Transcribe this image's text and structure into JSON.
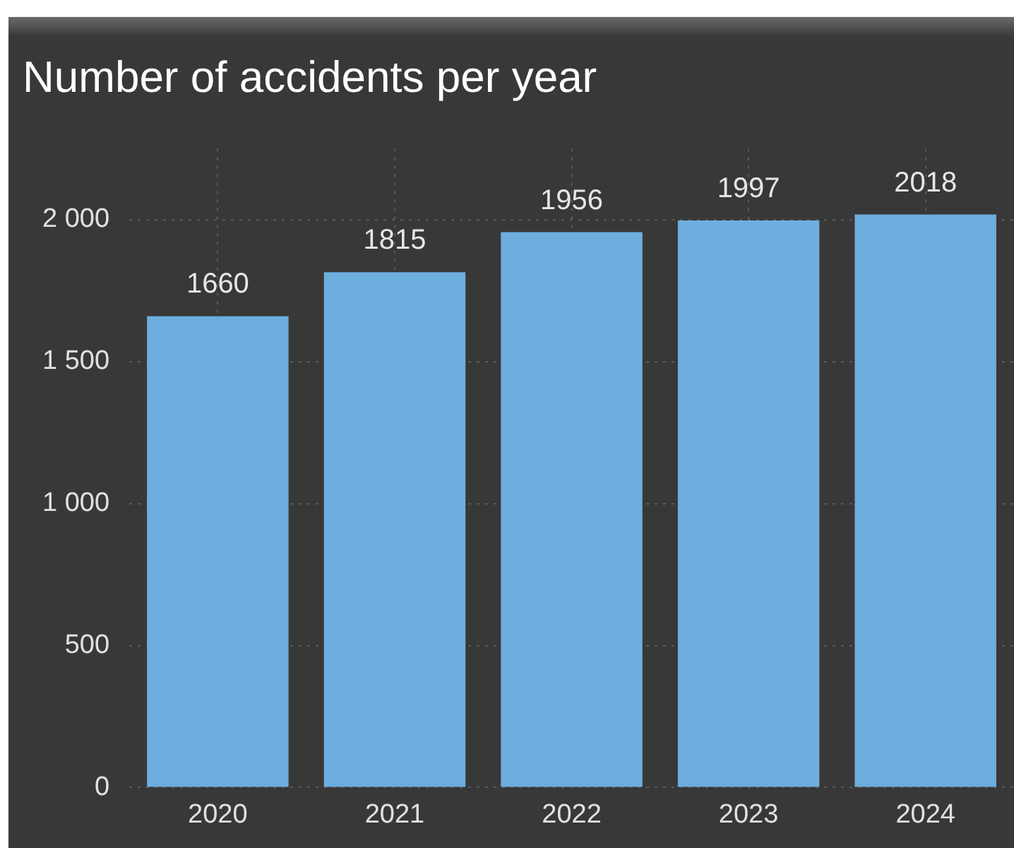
{
  "chart_data": {
    "type": "bar",
    "title": "Number of accidents per year",
    "categories": [
      "2020",
      "2021",
      "2022",
      "2023",
      "2024"
    ],
    "values": [
      1660,
      1815,
      1956,
      1997,
      2018
    ],
    "color": "#6daedf",
    "ylim": [
      0,
      2250
    ],
    "yticks": [
      {
        "value": 0,
        "label": "0"
      },
      {
        "value": 500,
        "label": "500"
      },
      {
        "value": 1000,
        "label": "1 000"
      },
      {
        "value": 1500,
        "label": "1 500"
      },
      {
        "value": 2000,
        "label": "2 000"
      }
    ],
    "grid": true,
    "data_labels": true
  }
}
